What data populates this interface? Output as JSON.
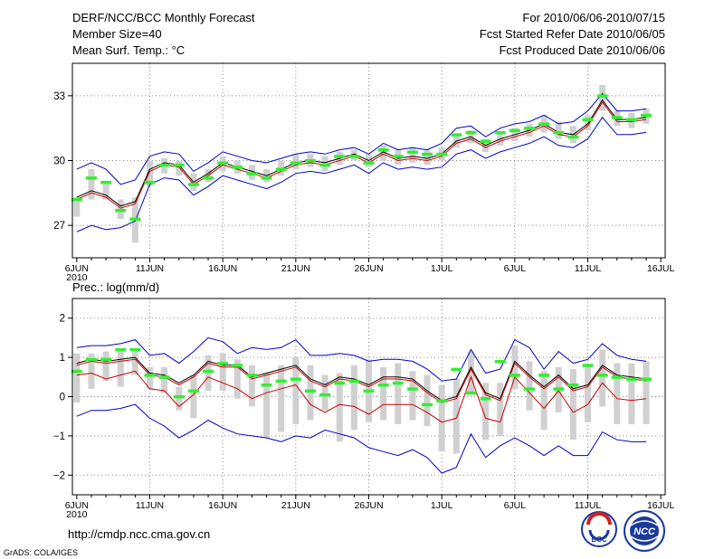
{
  "header": {
    "title": "DERF/NCC/BCC Monthly Forecast",
    "member_size": "Member Size=40",
    "variable": "Mean Surf. Temp.: °C",
    "period": "For 2010/06/06-2010/07/15",
    "start_date": "Fcst Started Refer Date 2010/06/05",
    "produced_date": "Fcst Produced Date 2010/06/06"
  },
  "footer": {
    "url": "http://cmdp.ncc.cma.gov.cn",
    "credit": "GrADS: COLA/IGES",
    "logo_bcc": "BCC",
    "logo_ncc": "NCC"
  },
  "colors": {
    "mean_line": "#000000",
    "median_line": "#cc0000",
    "bound_line": "#0000cc",
    "bar": "#d0d0d0",
    "marker": "#33ee33",
    "grid": "#888888"
  },
  "chart_data": [
    {
      "type": "line",
      "title": "Mean Surf. Temp.: °C",
      "xlabel": "",
      "ylabel": "°C",
      "ylim": [
        25.5,
        34.5
      ],
      "yticks": [
        27,
        30,
        33
      ],
      "ytick_labels": [
        "27",
        "30",
        "33"
      ],
      "grid": true,
      "x_day": [
        0,
        1,
        2,
        3,
        4,
        5,
        6,
        7,
        8,
        9,
        10,
        11,
        12,
        13,
        14,
        15,
        16,
        17,
        18,
        19,
        20,
        21,
        22,
        23,
        24,
        25,
        26,
        27,
        28,
        29,
        30,
        31,
        32,
        33,
        34,
        35,
        36,
        37,
        38,
        39
      ],
      "xtick_days": [
        0,
        5,
        10,
        15,
        20,
        25,
        30,
        35,
        40
      ],
      "xtick_labels": [
        "6JUN",
        "11JUN",
        "16JUN",
        "21JUN",
        "26JUN",
        "1JUL",
        "6JUL",
        "11JUL",
        "16JUL"
      ],
      "year_label": "2010",
      "series": [
        {
          "name": "mean",
          "values": [
            28.3,
            28.6,
            28.4,
            27.9,
            28.1,
            29.6,
            29.9,
            29.8,
            29.0,
            29.4,
            29.9,
            29.7,
            29.5,
            29.3,
            29.6,
            29.9,
            30.0,
            29.9,
            30.1,
            30.3,
            30.0,
            30.4,
            30.1,
            30.2,
            30.1,
            30.3,
            30.9,
            31.1,
            30.7,
            31.0,
            31.2,
            31.4,
            31.7,
            31.3,
            31.2,
            31.7,
            32.8,
            31.9,
            31.9,
            32.0
          ]
        },
        {
          "name": "median",
          "values": [
            28.2,
            28.5,
            28.3,
            27.8,
            28.0,
            29.5,
            29.8,
            29.7,
            28.9,
            29.3,
            29.8,
            29.6,
            29.4,
            29.2,
            29.5,
            29.8,
            29.9,
            29.8,
            30.0,
            30.2,
            29.9,
            30.3,
            30.0,
            30.1,
            30.0,
            30.2,
            30.8,
            31.0,
            30.6,
            30.9,
            31.1,
            31.3,
            31.6,
            31.2,
            31.1,
            31.6,
            32.7,
            31.8,
            31.8,
            31.9
          ]
        },
        {
          "name": "upper",
          "values": [
            29.6,
            29.9,
            29.6,
            28.9,
            29.1,
            30.2,
            30.4,
            30.3,
            29.5,
            29.9,
            30.4,
            30.2,
            30.0,
            29.9,
            30.1,
            30.3,
            30.4,
            30.3,
            30.5,
            30.6,
            30.3,
            30.8,
            30.5,
            30.6,
            30.5,
            30.8,
            31.5,
            31.6,
            31.1,
            31.5,
            31.7,
            31.8,
            32.1,
            31.7,
            31.8,
            32.3,
            33.1,
            32.3,
            32.3,
            32.4
          ]
        },
        {
          "name": "lower",
          "values": [
            26.7,
            27.0,
            26.8,
            26.9,
            27.2,
            28.9,
            29.2,
            29.1,
            28.4,
            28.8,
            29.3,
            29.1,
            28.9,
            28.7,
            29.0,
            29.4,
            29.5,
            29.4,
            29.6,
            29.8,
            29.4,
            29.9,
            29.6,
            29.7,
            29.6,
            29.7,
            30.3,
            30.5,
            30.1,
            30.4,
            30.6,
            30.8,
            31.1,
            30.7,
            30.6,
            31.0,
            32.0,
            31.2,
            31.2,
            31.3
          ]
        }
      ],
      "spread_bars": [
        {
          "lo": 27.4,
          "hi": 28.3
        },
        {
          "lo": 28.2,
          "hi": 29.6
        },
        {
          "lo": 28.2,
          "hi": 29.0
        },
        {
          "lo": 27.3,
          "hi": 28.2
        },
        {
          "lo": 26.2,
          "hi": 28.3
        },
        {
          "lo": 28.8,
          "hi": 30.0
        },
        {
          "lo": 29.4,
          "hi": 30.1
        },
        {
          "lo": 29.3,
          "hi": 30.0
        },
        {
          "lo": 28.6,
          "hi": 29.4
        },
        {
          "lo": 29.0,
          "hi": 29.6
        },
        {
          "lo": 29.5,
          "hi": 30.2
        },
        {
          "lo": 29.4,
          "hi": 30.0
        },
        {
          "lo": 29.1,
          "hi": 29.8
        },
        {
          "lo": 29.0,
          "hi": 29.6
        },
        {
          "lo": 29.3,
          "hi": 30.0
        },
        {
          "lo": 29.6,
          "hi": 30.3
        },
        {
          "lo": 29.7,
          "hi": 30.3
        },
        {
          "lo": 29.5,
          "hi": 30.2
        },
        {
          "lo": 29.8,
          "hi": 30.4
        },
        {
          "lo": 30.0,
          "hi": 30.5
        },
        {
          "lo": 29.7,
          "hi": 30.3
        },
        {
          "lo": 30.0,
          "hi": 30.7
        },
        {
          "lo": 29.8,
          "hi": 30.5
        },
        {
          "lo": 29.9,
          "hi": 30.6
        },
        {
          "lo": 29.8,
          "hi": 30.5
        },
        {
          "lo": 30.0,
          "hi": 30.6
        },
        {
          "lo": 30.6,
          "hi": 31.2
        },
        {
          "lo": 30.8,
          "hi": 31.4
        },
        {
          "lo": 30.4,
          "hi": 31.0
        },
        {
          "lo": 30.7,
          "hi": 31.3
        },
        {
          "lo": 30.9,
          "hi": 31.5
        },
        {
          "lo": 31.1,
          "hi": 31.7
        },
        {
          "lo": 31.3,
          "hi": 32.1
        },
        {
          "lo": 31.0,
          "hi": 31.8
        },
        {
          "lo": 30.8,
          "hi": 31.6
        },
        {
          "lo": 31.4,
          "hi": 32.1
        },
        {
          "lo": 32.3,
          "hi": 33.5
        },
        {
          "lo": 31.6,
          "hi": 32.3
        },
        {
          "lo": 31.5,
          "hi": 32.2
        },
        {
          "lo": 31.7,
          "hi": 32.4
        }
      ],
      "markers": [
        28.2,
        29.2,
        29.0,
        27.7,
        27.3,
        29.0,
        29.8,
        29.8,
        28.9,
        29.2,
        29.9,
        29.7,
        29.4,
        29.2,
        29.6,
        29.9,
        30.0,
        29.8,
        30.2,
        30.2,
        29.9,
        30.5,
        30.2,
        30.4,
        30.3,
        30.3,
        31.2,
        31.3,
        30.9,
        31.3,
        31.4,
        31.5,
        31.7,
        31.3,
        31.1,
        31.9,
        33.0,
        32.0,
        31.9,
        32.1
      ]
    },
    {
      "type": "line",
      "title": "Prec.: log(mm/d)",
      "xlabel": "",
      "ylabel": "log(mm/d)",
      "ylim": [
        -2.5,
        2.5
      ],
      "yticks": [
        -2,
        -1,
        0,
        1,
        2
      ],
      "ytick_labels": [
        "−2",
        "−1",
        "0",
        "1",
        "2"
      ],
      "grid": true,
      "x_day": [
        0,
        1,
        2,
        3,
        4,
        5,
        6,
        7,
        8,
        9,
        10,
        11,
        12,
        13,
        14,
        15,
        16,
        17,
        18,
        19,
        20,
        21,
        22,
        23,
        24,
        25,
        26,
        27,
        28,
        29,
        30,
        31,
        32,
        33,
        34,
        35,
        36,
        37,
        38,
        39
      ],
      "xtick_days": [
        0,
        5,
        10,
        15,
        20,
        25,
        30,
        35,
        40
      ],
      "xtick_labels": [
        "6JUN",
        "11JUN",
        "16JUN",
        "21JUN",
        "26JUN",
        "1JUL",
        "6JUL",
        "11JUL",
        "16JUL"
      ],
      "year_label": "2010",
      "series": [
        {
          "name": "mean",
          "values": [
            0.85,
            0.95,
            0.9,
            0.95,
            1.0,
            0.6,
            0.55,
            0.35,
            0.55,
            0.9,
            0.8,
            0.8,
            0.5,
            0.6,
            0.7,
            0.8,
            0.45,
            0.3,
            0.5,
            0.45,
            0.3,
            0.5,
            0.5,
            0.45,
            0.15,
            -0.1,
            0.0,
            0.75,
            0.1,
            -0.05,
            0.9,
            0.55,
            0.25,
            0.55,
            0.2,
            0.3,
            0.8,
            0.55,
            0.5,
            0.45
          ]
        },
        {
          "name": "median",
          "values": [
            0.8,
            0.9,
            0.85,
            0.9,
            0.95,
            0.55,
            0.5,
            0.3,
            0.5,
            0.85,
            0.75,
            0.75,
            0.45,
            0.55,
            0.65,
            0.75,
            0.4,
            0.25,
            0.45,
            0.4,
            0.25,
            0.45,
            0.45,
            0.4,
            0.1,
            -0.15,
            -0.05,
            0.7,
            0.05,
            -0.1,
            0.85,
            0.5,
            0.2,
            0.5,
            0.15,
            0.25,
            0.75,
            0.5,
            0.45,
            0.4
          ]
        },
        {
          "name": "lower_pct",
          "values": [
            0.55,
            0.6,
            0.45,
            0.55,
            0.65,
            0.2,
            0.15,
            -0.25,
            0.05,
            0.5,
            0.35,
            0.2,
            -0.05,
            0.1,
            0.2,
            0.3,
            -0.2,
            -0.4,
            -0.2,
            -0.25,
            -0.45,
            -0.2,
            -0.2,
            -0.2,
            -0.4,
            -0.65,
            -0.55,
            0.5,
            -0.55,
            -0.65,
            0.5,
            0.1,
            -0.3,
            0.15,
            -0.4,
            -0.2,
            0.35,
            -0.05,
            -0.1,
            -0.05
          ]
        },
        {
          "name": "upper",
          "values": [
            1.25,
            1.3,
            1.3,
            1.35,
            1.45,
            1.05,
            1.1,
            0.85,
            1.15,
            1.5,
            1.4,
            1.1,
            1.25,
            1.2,
            1.25,
            1.45,
            1.05,
            1.05,
            1.1,
            1.05,
            0.9,
            0.95,
            0.95,
            0.9,
            0.7,
            0.4,
            0.45,
            1.2,
            0.6,
            0.7,
            1.45,
            1.25,
            0.7,
            1.15,
            0.85,
            0.95,
            1.35,
            1.05,
            0.95,
            0.9
          ]
        },
        {
          "name": "lower",
          "values": [
            -0.5,
            -0.35,
            -0.35,
            -0.3,
            -0.2,
            -0.55,
            -0.75,
            -1.05,
            -0.85,
            -0.6,
            -0.8,
            -0.95,
            -1.0,
            -1.05,
            -1.15,
            -1.0,
            -1.05,
            -0.85,
            -0.95,
            -1.05,
            -1.3,
            -1.4,
            -1.5,
            -1.35,
            -1.55,
            -1.95,
            -1.8,
            -0.95,
            -1.55,
            -1.25,
            -1.05,
            -1.25,
            -1.5,
            -1.25,
            -1.5,
            -1.5,
            -0.9,
            -1.1,
            -1.15,
            -1.15
          ]
        }
      ],
      "spread_bars": [
        {
          "lo": -0.15,
          "hi": 1.1
        },
        {
          "lo": 0.2,
          "hi": 1.1
        },
        {
          "lo": 0.4,
          "hi": 1.15
        },
        {
          "lo": 0.25,
          "hi": 1.2
        },
        {
          "lo": 0.55,
          "hi": 1.15
        },
        {
          "lo": 0.2,
          "hi": 0.75
        },
        {
          "lo": 0.1,
          "hi": 0.75
        },
        {
          "lo": -0.35,
          "hi": 0.25
        },
        {
          "lo": -0.55,
          "hi": 0.55
        },
        {
          "lo": 0.15,
          "hi": 1.05
        },
        {
          "lo": 0.15,
          "hi": 1.1
        },
        {
          "lo": -0.05,
          "hi": 0.95
        },
        {
          "lo": -0.25,
          "hi": 0.8
        },
        {
          "lo": -1.05,
          "hi": 0.6
        },
        {
          "lo": -0.9,
          "hi": 0.8
        },
        {
          "lo": -0.7,
          "hi": 1.0
        },
        {
          "lo": -0.6,
          "hi": 0.8
        },
        {
          "lo": -0.35,
          "hi": 0.55
        },
        {
          "lo": -1.15,
          "hi": 0.6
        },
        {
          "lo": -0.85,
          "hi": 0.8
        },
        {
          "lo": -0.65,
          "hi": 0.95
        },
        {
          "lo": -0.6,
          "hi": 0.75
        },
        {
          "lo": -0.7,
          "hi": 0.85
        },
        {
          "lo": -0.6,
          "hi": 0.65
        },
        {
          "lo": -0.75,
          "hi": 0.55
        },
        {
          "lo": -1.4,
          "hi": 0.3
        },
        {
          "lo": -1.45,
          "hi": 0.45
        },
        {
          "lo": 0.05,
          "hi": 1.15
        },
        {
          "lo": -1.1,
          "hi": 0.35
        },
        {
          "lo": -1.0,
          "hi": 0.35
        },
        {
          "lo": 0.2,
          "hi": 1.3
        },
        {
          "lo": -0.35,
          "hi": 0.9
        },
        {
          "lo": -0.85,
          "hi": 0.65
        },
        {
          "lo": -0.4,
          "hi": 0.75
        },
        {
          "lo": -1.1,
          "hi": 0.7
        },
        {
          "lo": -0.65,
          "hi": 0.8
        },
        {
          "lo": -0.25,
          "hi": 1.2
        },
        {
          "lo": -0.7,
          "hi": 0.85
        },
        {
          "lo": -0.7,
          "hi": 0.85
        },
        {
          "lo": -0.7,
          "hi": 0.9
        }
      ],
      "markers": [
        0.65,
        0.95,
        0.95,
        1.2,
        1.2,
        0.55,
        0.5,
        0.0,
        0.15,
        0.65,
        0.85,
        0.8,
        0.55,
        0.3,
        0.4,
        0.45,
        0.15,
        0.05,
        0.35,
        0.4,
        0.15,
        0.3,
        0.35,
        0.2,
        -0.2,
        -0.1,
        0.7,
        0.1,
        -0.05,
        0.9,
        0.55,
        0.2,
        0.55,
        0.2,
        0.3,
        0.8,
        0.55,
        0.5,
        0.45,
        0.45
      ]
    }
  ]
}
